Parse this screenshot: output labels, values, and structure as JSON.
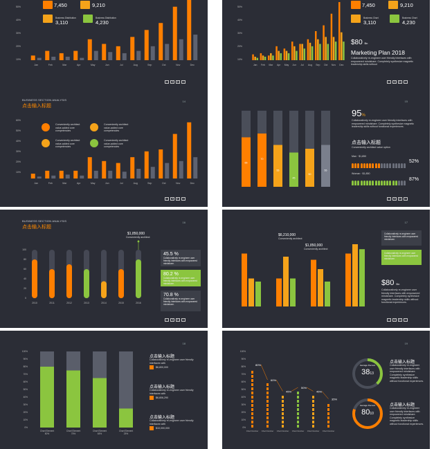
{
  "colors": {
    "orange": "#ff7f00",
    "amber": "#f5a31a",
    "green": "#8bc53f",
    "gray": "#5d6271",
    "bg": "#2b2d36"
  },
  "nav_icons": [
    "first-icon",
    "prev-icon",
    "next-icon",
    "last-icon"
  ],
  "slide1": {
    "number": "",
    "y_ticks": [
      "50%",
      "40%",
      "30%",
      "20%",
      "10%"
    ],
    "stats": [
      {
        "label": "",
        "value": "7,450",
        "color": "#ff7f00"
      },
      {
        "label": "",
        "value": "9,210",
        "color": "#f5a31a"
      },
      {
        "label": "Business Distribution",
        "value": "3,110",
        "color": "#f5a31a"
      },
      {
        "label": "Business Distribution",
        "value": "4,230",
        "color": "#8bc53f"
      }
    ]
  },
  "slide2": {
    "number": "",
    "y_ticks": [
      "50%",
      "40%",
      "30%",
      "20%",
      "10%",
      "0%"
    ],
    "stats": [
      {
        "label": "",
        "value": "7,450",
        "color": "#ff7f00"
      },
      {
        "label": "",
        "value": "9,210",
        "color": "#f5a31a"
      },
      {
        "label": "Business Chart",
        "value": "3,110",
        "color": "#f5a31a"
      },
      {
        "label": "Business Chart",
        "value": "4,230",
        "color": "#8bc53f"
      }
    ],
    "price": "$80",
    "price_unit": "Bn",
    "heading": "Marketing Plan 2018",
    "body": "Collaboratively re-engineer user friendly interfaces with empowered mindshare. Completely synthesize magnetic leadership skills without"
  },
  "slide3": {
    "number": "14",
    "section": "BUSINESS  SECTION ANALYSIS",
    "title": "点击输入标题",
    "y_ticks": [
      "60%",
      "50%",
      "40%",
      "30%",
      "20%",
      "10%"
    ],
    "legend": [
      {
        "text": "Conveniently architect value-added core competencies",
        "color": "#ff7f00"
      },
      {
        "text": "Conveniently architect value-added core competencies",
        "color": "#f5a31a"
      },
      {
        "text": "Conveniently architect value-added core competencies",
        "color": "#f5a31a"
      },
      {
        "text": "Conveniently architect value-added core competencies",
        "color": "#8bc53f"
      }
    ]
  },
  "slide4": {
    "number": "15",
    "pct": "95",
    "pct_unit": "%",
    "body": "Collaboratively re-engineer user friendly interfaces with empowered mindshare. Completely synthesize magnetic leadership skills without functional experiences.",
    "title": "点击输入标题",
    "subtitle": "Conveniently architect value option",
    "rows": [
      {
        "label": "Man · $1,850",
        "percent": "52%",
        "filled": 10,
        "total": 19,
        "color": "#ff7f00"
      },
      {
        "label": "Woman · $1,850",
        "percent": "87%",
        "filled": 16,
        "total": 19,
        "color": "#8bc53f"
      }
    ]
  },
  "slide5": {
    "number": "16",
    "section": "BUSINESS  SECTION ANALYSIS",
    "title": "点击输入标题",
    "callout_value": "$1,850,000",
    "callout_sub": "Conveniently architect",
    "y_ticks": [
      "100",
      "80",
      "60",
      "40",
      "20",
      "0"
    ],
    "boxes": [
      {
        "value": "45.5 %",
        "text": "Collaboratively re-engineer user friendly interfaces with empowered mindshare."
      },
      {
        "value": "80.2 %",
        "text": "Collaboratively re-engineer user friendly interfaces with empowered mindshare."
      },
      {
        "value": "70.8 %",
        "text": "Collaboratively re-engineer user friendly interfaces with empowered mindshare."
      }
    ]
  },
  "slide6": {
    "number": "17",
    "callout_a": "$6,210,000",
    "callout_a_sub": "Conveniently architect",
    "callout_b": "$1,850,000",
    "callout_b_sub": "Conveniently architect",
    "price": "$80",
    "price_unit": "Bn",
    "body": "Collaboratively re-engineer user friendly interfaces with empowered mindshare. Completely synthesize magnetic leadership skills without functional experiences.",
    "boxes": [
      {
        "text": "Collaboratively re-engineer user friendly interfaces with empowered mindshare."
      },
      {
        "text": "Collaboratively re-engineer user friendly interfaces with empowered mindshare."
      },
      {
        "text": "Collaboratively re-engineer user friendly interfaces with empowered mindshare."
      }
    ]
  },
  "slide7": {
    "number": "18",
    "y_ticks": [
      "100%",
      "90%",
      "80%",
      "70%",
      "60%",
      "50%",
      "40%",
      "30%",
      "20%",
      "10%",
      "0%"
    ],
    "items": [
      {
        "title": "点击输入标题",
        "text": "Collaboratively re-engineer user friendly interfaces with",
        "value": "$6,800,000"
      },
      {
        "title": "点击输入标题",
        "text": "Collaboratively re-engineer user friendly interfaces with",
        "value": "$6,806,290"
      },
      {
        "title": "点击输入标题",
        "text": "Collaboratively re-engineer user friendly interfaces with",
        "value": "$10,000,000"
      }
    ]
  },
  "slide8": {
    "number": "19",
    "y_ticks": [
      "100%",
      "90%",
      "80%",
      "70%",
      "60%",
      "50%",
      "40%",
      "30%",
      "20%",
      "10%",
      "0%"
    ],
    "pct_labels": [
      "80%",
      "60%",
      "45%",
      "50%",
      "45%",
      "35%"
    ],
    "rings": [
      {
        "label": "Average Percent",
        "main": "38",
        "sub": "13",
        "title": "点击输入标题",
        "text": "Collaboratively re-engineer user friendly interfaces with empowered mindshare. Completely synthesize magnetic leadership skills without functional experiences."
      },
      {
        "label": "Average Percent",
        "main": "80",
        "sub": "10",
        "title": "点击输入标题",
        "text": "Collaboratively re-engineer user friendly interfaces with empowered mindshare. Completely synthesize magnetic leadership skills without functional experiences."
      }
    ]
  },
  "chart_data": [
    {
      "type": "bar",
      "title": "",
      "categories": [
        "Jan",
        "Feb",
        "Mar",
        "Apr",
        "May",
        "Jun",
        "Jul",
        "Aug",
        "Sep",
        "Oct",
        "Nov",
        "Dec"
      ],
      "series": [
        {
          "values": [
            4,
            8,
            6,
            8,
            18,
            14,
            12,
            20,
            26,
            32,
            46,
            52
          ]
        },
        {
          "values": [
            2,
            3,
            3,
            2,
            8,
            7,
            6,
            8,
            12,
            14,
            18,
            22
          ]
        }
      ],
      "ylim": [
        0,
        50
      ]
    },
    {
      "type": "bar",
      "title": "",
      "categories": [
        "Jan",
        "Feb",
        "Mar",
        "Apr",
        "May",
        "Jun",
        "Jul",
        "Aug",
        "Sep",
        "Oct",
        "Nov",
        "Dec"
      ],
      "series": [
        {
          "values": [
            5,
            6,
            4,
            12,
            10,
            16,
            14,
            18,
            25,
            30,
            40,
            50
          ]
        },
        {
          "values": [
            3,
            4,
            6,
            8,
            8,
            12,
            14,
            15,
            18,
            20,
            20,
            24
          ]
        },
        {
          "values": [
            2,
            3,
            4,
            6,
            6,
            8,
            10,
            12,
            14,
            14,
            16,
            16
          ]
        }
      ],
      "ylim": [
        0,
        50
      ]
    },
    {
      "type": "bar",
      "title": "",
      "categories": [
        "Jan",
        "Feb",
        "Mar",
        "Apr",
        "May",
        "Jun",
        "Jul",
        "Aug",
        "Sep",
        "Oct",
        "Nov",
        "Dec"
      ],
      "series": [
        {
          "values": [
            5,
            8,
            8,
            8,
            22,
            18,
            16,
            22,
            28,
            30,
            46,
            58
          ]
        },
        {
          "values": [
            2,
            3,
            4,
            3,
            8,
            8,
            7,
            10,
            12,
            16,
            18,
            22
          ]
        }
      ],
      "ylim": [
        0,
        60
      ]
    },
    {
      "type": "bar",
      "title": "",
      "categories": [
        "",
        "",
        "",
        "",
        "",
        ""
      ],
      "series": [
        {
          "values": [
            65,
            70,
            55,
            45,
            50,
            55
          ]
        }
      ],
      "ylim": [
        0,
        100
      ]
    },
    {
      "type": "bar",
      "title": "",
      "categories": [
        "2010",
        "2011",
        "2012",
        "2013",
        "2014",
        "2015",
        "2016"
      ],
      "series": [
        {
          "values": [
            80,
            60,
            70,
            60,
            35,
            60,
            80
          ]
        }
      ],
      "ylim": [
        0,
        100
      ]
    },
    {
      "type": "bar",
      "title": "",
      "categories": [
        "",
        "",
        "",
        ""
      ],
      "series": [
        {
          "values": [
            85,
            45,
            75,
            85
          ]
        },
        {
          "values": [
            45,
            80,
            60,
            100
          ]
        },
        {
          "values": [
            40,
            45,
            40,
            92
          ]
        }
      ],
      "ylim": [
        0,
        100
      ]
    },
    {
      "type": "bar",
      "title": "",
      "categories": [
        "Chart Element",
        "Chart Element",
        "Chart Element",
        "Chart Element"
      ],
      "x_sub": [
        "80%",
        "75%",
        "65%",
        "25%"
      ],
      "series": [
        {
          "values": [
            80,
            75,
            65,
            25
          ]
        }
      ],
      "ylim": [
        0,
        100
      ]
    },
    {
      "type": "bar",
      "title": "",
      "categories": [
        "Chart Number",
        "Chart Number",
        "Chart Number",
        "Chart Number",
        "Chart Number",
        "Chart Number"
      ],
      "series": [
        {
          "values": [
            80,
            60,
            45,
            50,
            45,
            35
          ]
        }
      ],
      "ylim": [
        0,
        100
      ]
    }
  ]
}
